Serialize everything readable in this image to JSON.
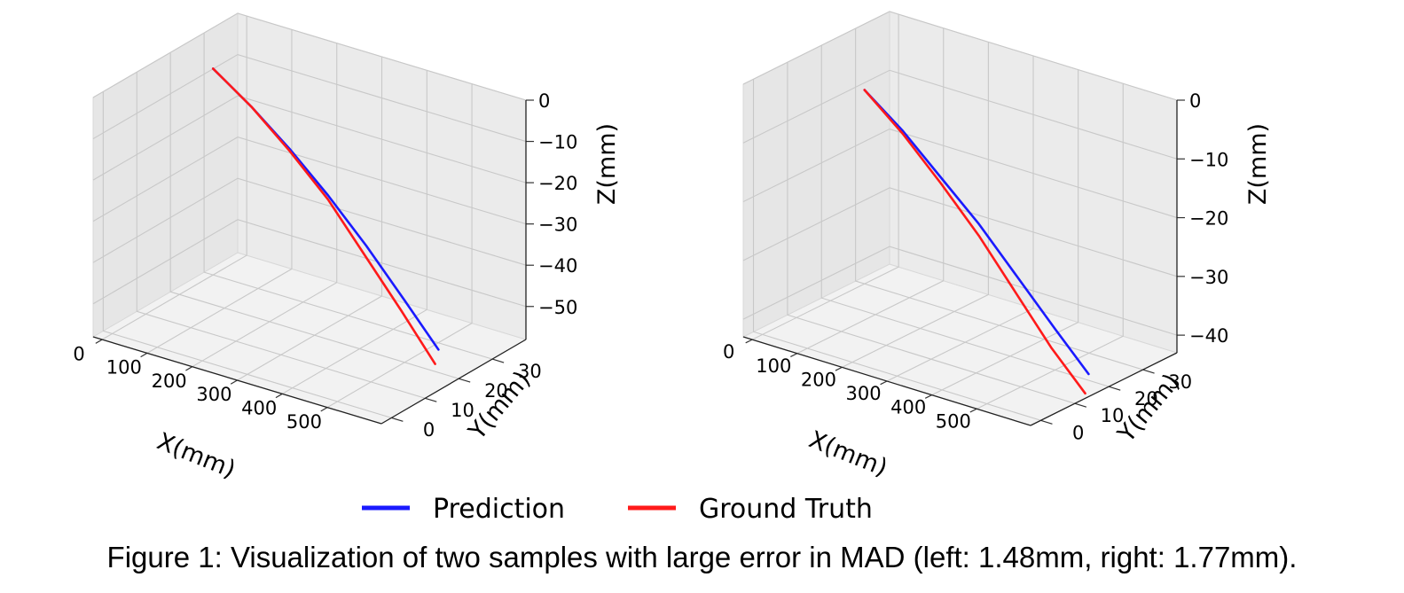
{
  "caption": "Figure 1: Visualization of two samples with large error in MAD (left: 1.48mm, right: 1.77mm).",
  "legend": {
    "position": "bottom-center",
    "entries": [
      {
        "label": "Prediction",
        "color": "#1a1aff"
      },
      {
        "label": "Ground Truth",
        "color": "#ff1a1a"
      }
    ]
  },
  "chart_data": [
    {
      "type": "line",
      "projection": "3d",
      "grid": true,
      "xlabel": "X(mm)",
      "ylabel": "Y(mm)",
      "zlabel": "Z(mm)",
      "xticks": [
        "0",
        "100",
        "200",
        "300",
        "400",
        "500"
      ],
      "yticks": [
        "0",
        "10",
        "20",
        "30"
      ],
      "zticks": [
        "0",
        "−10",
        "−20",
        "−30",
        "−40",
        "−50"
      ],
      "xlim": [
        -20,
        620
      ],
      "ylim": [
        -3,
        40
      ],
      "zlim": [
        -58,
        0
      ],
      "series": [
        {
          "name": "Prediction",
          "color": "#1a1aff",
          "points": [
            [
              0,
              30,
              -8
            ],
            [
              100,
              28,
              -13
            ],
            [
              200,
              26,
              -19
            ],
            [
              300,
              24,
              -26
            ],
            [
              400,
              22,
              -34
            ],
            [
              500,
              20,
              -43
            ],
            [
              590,
              18,
              -51
            ]
          ]
        },
        {
          "name": "Ground Truth",
          "color": "#ff1a1a",
          "points": [
            [
              0,
              30,
              -8
            ],
            [
              100,
              28,
              -13
            ],
            [
              200,
              26,
              -19.5
            ],
            [
              300,
              24,
              -27
            ],
            [
              400,
              21.5,
              -36
            ],
            [
              500,
              19,
              -45
            ],
            [
              590,
              17,
              -54
            ]
          ]
        }
      ]
    },
    {
      "type": "line",
      "projection": "3d",
      "grid": true,
      "xlabel": "X(mm)",
      "ylabel": "Y(mm)",
      "zlabel": "Z(mm)",
      "xticks": [
        "0",
        "100",
        "200",
        "300",
        "400",
        "500"
      ],
      "yticks": [
        "0",
        "10",
        "20",
        "30"
      ],
      "zticks": [
        "0",
        "−10",
        "−20",
        "−30",
        "−40"
      ],
      "xlim": [
        -20,
        620
      ],
      "ylim": [
        -3,
        40
      ],
      "zlim": [
        -43,
        0
      ],
      "series": [
        {
          "name": "Prediction",
          "color": "#1a1aff",
          "points": [
            [
              0,
              30,
              -10
            ],
            [
              100,
              28,
              -14
            ],
            [
              200,
              26,
              -19
            ],
            [
              300,
              24,
              -24
            ],
            [
              400,
              22,
              -30
            ],
            [
              500,
              20,
              -36
            ],
            [
              590,
              18,
              -41
            ]
          ]
        },
        {
          "name": "Ground Truth",
          "color": "#ff1a1a",
          "points": [
            [
              0,
              30,
              -10
            ],
            [
              100,
              28,
              -14.5
            ],
            [
              200,
              26,
              -20
            ],
            [
              300,
              24,
              -26
            ],
            [
              400,
              21.5,
              -32.5
            ],
            [
              500,
              19,
              -39
            ],
            [
              590,
              17,
              -44
            ]
          ]
        }
      ]
    }
  ]
}
